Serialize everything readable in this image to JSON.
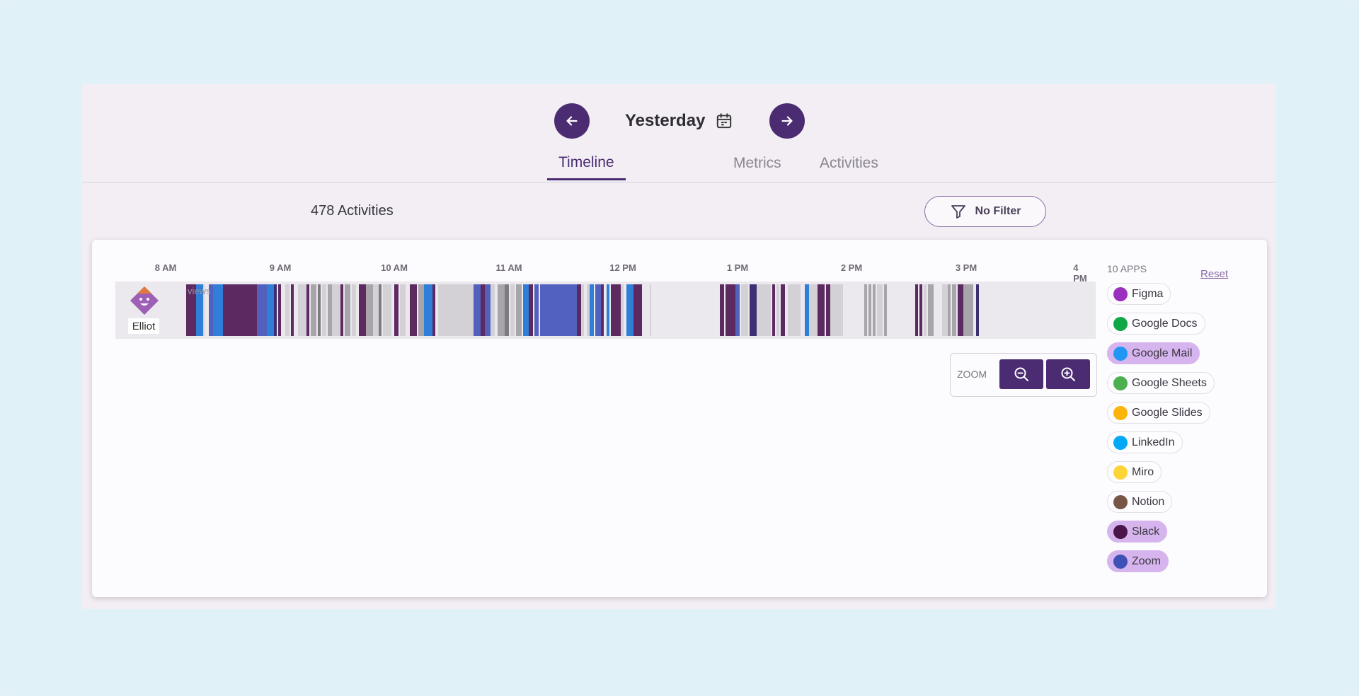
{
  "header": {
    "date_label": "Yesterday",
    "prev_icon": "arrow-left-icon",
    "next_icon": "arrow-right-icon",
    "calendar_icon": "calendar-icon"
  },
  "tabs": [
    {
      "label": "Timeline",
      "active": true
    },
    {
      "label": "Metrics",
      "active": false
    },
    {
      "label": "Activities",
      "active": false
    }
  ],
  "summary": {
    "activity_count": "478 Activities",
    "filter_label": "No Filter",
    "filter_icon": "filter-icon"
  },
  "timeline": {
    "hours": [
      "8 AM",
      "9 AM",
      "10 AM",
      "11 AM",
      "12 PM",
      "1 PM",
      "2 PM",
      "3 PM",
      "4 PM"
    ],
    "user_name": "Elliot",
    "views_label": "views",
    "colors": {
      "slack": "#5c2a60",
      "zoom": "#5161bd",
      "gmail": "#2f7fd8",
      "idle_light": "#d4d1d6",
      "idle_gray": "#a8a5aa",
      "idle_dark": "#7e7b80",
      "navy": "#3d2f72"
    }
  },
  "zoom": {
    "label": "ZOOM",
    "out_icon": "zoom-out-icon",
    "in_icon": "zoom-in-icon"
  },
  "apps": {
    "title": "10 APPS",
    "reset_label": "Reset",
    "items": [
      {
        "label": "Figma",
        "color": "#9b2fbf",
        "selected": false
      },
      {
        "label": "Google Docs",
        "color": "#10a846",
        "selected": false
      },
      {
        "label": "Google Mail",
        "color": "#2196f3",
        "selected": true
      },
      {
        "label": "Google Sheets",
        "color": "#4caf50",
        "selected": false
      },
      {
        "label": "Google Slides",
        "color": "#fbb40a",
        "selected": false
      },
      {
        "label": "LinkedIn",
        "color": "#03a9f4",
        "selected": false
      },
      {
        "label": "Miro",
        "color": "#fdd537",
        "selected": false
      },
      {
        "label": "Notion",
        "color": "#795548",
        "selected": false
      },
      {
        "label": "Slack",
        "color": "#4a154b",
        "selected": true
      },
      {
        "label": "Zoom",
        "color": "#3f51b5",
        "selected": true
      }
    ]
  }
}
